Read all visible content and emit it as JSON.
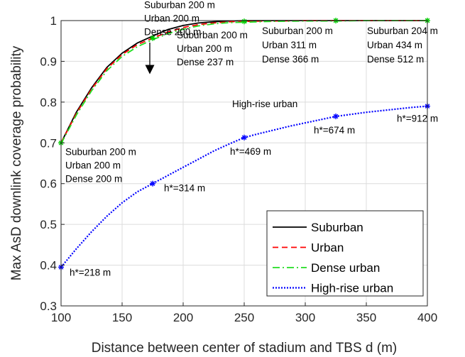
{
  "chart_data": {
    "type": "line",
    "xlabel": "Distance between center of stadium and TBS d (m)",
    "ylabel": "Max AsD downlink coverage probability",
    "xlim": [
      100,
      400
    ],
    "ylim": [
      0.3,
      1.0
    ],
    "xticks": [
      "100",
      "150",
      "200",
      "250",
      "300",
      "350",
      "400"
    ],
    "yticks": [
      "0.3",
      "0.4",
      "0.5",
      "0.6",
      "0.7",
      "0.8",
      "0.9",
      "1"
    ],
    "grid": true,
    "legend_position": "bottom-right",
    "series": [
      {
        "name": "Suburban",
        "color": "#000000",
        "style": "solid",
        "x": [
          100,
          112.5,
          125,
          137.5,
          150,
          162.5,
          175,
          187.5,
          200,
          212.5,
          225,
          237.5,
          250,
          275,
          300,
          325,
          350,
          375,
          400
        ],
        "y": [
          0.7,
          0.775,
          0.835,
          0.885,
          0.92,
          0.945,
          0.962,
          0.978,
          0.988,
          0.994,
          0.997,
          0.999,
          1.0,
          1.0,
          1.0,
          1.0,
          1.0,
          1.0,
          1.0
        ]
      },
      {
        "name": "Urban",
        "color": "#ff0000",
        "style": "dashed",
        "x": [
          100,
          112.5,
          125,
          137.5,
          150,
          162.5,
          175,
          187.5,
          200,
          212.5,
          225,
          237.5,
          250,
          275,
          300,
          325,
          350,
          375,
          400
        ],
        "y": [
          0.7,
          0.772,
          0.832,
          0.882,
          0.917,
          0.941,
          0.957,
          0.972,
          0.983,
          0.99,
          0.994,
          0.997,
          0.998,
          0.999,
          1.0,
          1.0,
          1.0,
          1.0,
          1.0
        ]
      },
      {
        "name": "Dense urban",
        "color": "#22dd22",
        "style": "dashdot",
        "x": [
          100,
          112.5,
          125,
          137.5,
          150,
          162.5,
          175,
          187.5,
          200,
          212.5,
          225,
          237.5,
          250,
          275,
          300,
          325,
          350,
          375,
          400
        ],
        "y": [
          0.698,
          0.768,
          0.828,
          0.877,
          0.912,
          0.936,
          0.953,
          0.968,
          0.979,
          0.987,
          0.992,
          0.995,
          0.996,
          0.998,
          0.999,
          0.999,
          1.0,
          1.0,
          1.0
        ]
      },
      {
        "name": "High-rise urban",
        "color": "#0000ff",
        "style": "dotted",
        "x": [
          100,
          112.5,
          125,
          137.5,
          150,
          162.5,
          175,
          187.5,
          200,
          212.5,
          225,
          237.5,
          250,
          262.5,
          275,
          287.5,
          300,
          312.5,
          325,
          337.5,
          350,
          362.5,
          375,
          387.5,
          400
        ],
        "y": [
          0.395,
          0.44,
          0.482,
          0.52,
          0.553,
          0.58,
          0.6,
          0.62,
          0.64,
          0.66,
          0.68,
          0.697,
          0.713,
          0.723,
          0.732,
          0.741,
          0.749,
          0.757,
          0.765,
          0.77,
          0.775,
          0.779,
          0.783,
          0.787,
          0.79
        ]
      }
    ],
    "markers": [
      {
        "color": "#00cc00",
        "symbol": "*",
        "points": [
          [
            100,
            0.7
          ],
          [
            175,
            0.957
          ],
          [
            250,
            0.998
          ],
          [
            325,
            1.0
          ],
          [
            400,
            1.0
          ]
        ]
      },
      {
        "color": "#0000ff",
        "symbol": "*",
        "points": [
          [
            100,
            0.395
          ],
          [
            175,
            0.6
          ],
          [
            250,
            0.713
          ],
          [
            325,
            0.765
          ],
          [
            400,
            0.79
          ]
        ]
      }
    ],
    "annotations": [
      {
        "x": 100,
        "y": 0.7,
        "lines": [
          "Suburban 200 m",
          "Urban 200 m",
          "Dense 200 m"
        ]
      },
      {
        "x": 175,
        "y": 0.957,
        "lines": [
          "Suburban 200 m",
          "Urban 200 m",
          "Dense 200 m"
        ]
      },
      {
        "x": 250,
        "y": 0.998,
        "lines": [
          "Suburban 200 m",
          "Urban 200 m",
          "Dense 237 m"
        ]
      },
      {
        "x": 325,
        "y": 1.0,
        "lines": [
          "Suburban 200 m",
          "Urban 311 m",
          "Dense 366 m"
        ]
      },
      {
        "x": 400,
        "y": 1.0,
        "lines": [
          "Suburban 204 m",
          "Urban 434 m",
          "Dense 512 m"
        ]
      },
      {
        "x": 100,
        "y": 0.395,
        "lines": [
          "h*=218 m"
        ]
      },
      {
        "x": 175,
        "y": 0.6,
        "lines": [
          "h*=314 m"
        ]
      },
      {
        "x": 250,
        "y": 0.713,
        "lines": [
          "h*=469 m"
        ]
      },
      {
        "x": 325,
        "y": 0.765,
        "lines": [
          "h*=674 m"
        ]
      },
      {
        "x": 400,
        "y": 0.79,
        "lines": [
          "h*=912 m"
        ]
      },
      {
        "x": 250,
        "y": 0.77,
        "lines": [
          "High-rise urban"
        ]
      }
    ]
  }
}
